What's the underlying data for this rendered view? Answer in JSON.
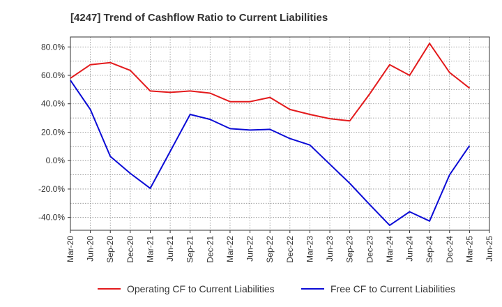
{
  "chart_data": {
    "type": "line",
    "title": "[4247]  Trend of Cashflow Ratio to Current Liabilities",
    "xlabel": "",
    "ylabel": "",
    "x": [
      "Mar-20",
      "Jun-20",
      "Sep-20",
      "Dec-20",
      "Mar-21",
      "Jun-21",
      "Sep-21",
      "Dec-21",
      "Mar-22",
      "Jun-22",
      "Sep-22",
      "Dec-22",
      "Mar-23",
      "Jun-23",
      "Sep-23",
      "Dec-23",
      "Mar-24",
      "Jun-24",
      "Sep-24",
      "Dec-24",
      "Mar-25",
      "Jun-25"
    ],
    "ylim": [
      -49.0,
      87.0
    ],
    "yticks": [
      80.0,
      60.0,
      40.0,
      20.0,
      0.0,
      -20.0,
      -40.0
    ],
    "ytick_labels": [
      "80.0%",
      "60.0%",
      "40.0%",
      "20.0%",
      "0.0%",
      "-20.0%",
      "-40.0%"
    ],
    "grid": true,
    "legend_position": "bottom",
    "series": [
      {
        "name": "Operating CF to Current Liabilities",
        "color": "#e31a1c",
        "values": [
          58.0,
          67.5,
          69.0,
          63.5,
          49.0,
          48.0,
          49.0,
          47.5,
          41.5,
          41.5,
          44.5,
          36.0,
          32.5,
          29.5,
          28.0,
          47.0,
          67.5,
          60.0,
          82.5,
          62.0,
          51.0,
          null
        ]
      },
      {
        "name": "Free CF to Current Liabilities",
        "color": "#0b0bd6",
        "values": [
          56.5,
          36.0,
          3.0,
          -9.0,
          -19.5,
          6.5,
          32.5,
          29.0,
          22.5,
          21.5,
          22.0,
          15.5,
          11.0,
          -2.5,
          -16.0,
          -31.0,
          -45.5,
          -36.0,
          -42.5,
          -10.0,
          10.5,
          null
        ]
      }
    ]
  }
}
